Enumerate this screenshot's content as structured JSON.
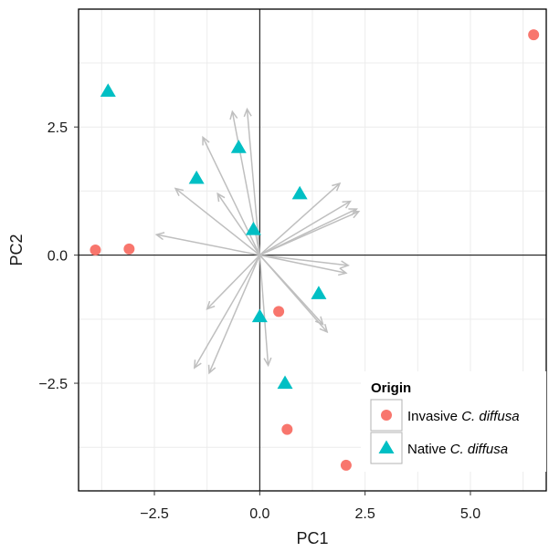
{
  "chart_data": {
    "type": "scatter",
    "xlabel": "PC1",
    "ylabel": "PC2",
    "xlim": [
      -4.3,
      6.8
    ],
    "ylim": [
      -4.6,
      4.8
    ],
    "x_ticks": [
      -2.5,
      0.0,
      2.5,
      5.0
    ],
    "x_tick_labels": [
      "−2.5",
      "0.0",
      "2.5",
      "5.0"
    ],
    "y_ticks": [
      -2.5,
      0.0,
      2.5
    ],
    "y_tick_labels": [
      "−2.5",
      "0.0",
      "2.5"
    ],
    "grid": true,
    "reference_lines": {
      "x": 0,
      "y": 0
    },
    "legend": {
      "title": "Origin",
      "placement": "bottom-right"
    },
    "series": [
      {
        "name": "Invasive C. diffusa",
        "name_prefix": "Invasive ",
        "name_italic": "C. diffusa",
        "marker": "circle",
        "color": "#F8766D",
        "points": [
          {
            "x": 6.5,
            "y": 4.3
          },
          {
            "x": -3.9,
            "y": 0.1
          },
          {
            "x": -3.1,
            "y": 0.12
          },
          {
            "x": 0.45,
            "y": -1.1
          },
          {
            "x": 0.65,
            "y": -3.4
          },
          {
            "x": 2.05,
            "y": -4.1
          }
        ]
      },
      {
        "name": "Native C. diffusa",
        "name_prefix": "Native ",
        "name_italic": "C. diffusa",
        "marker": "triangle",
        "color": "#00BFC4",
        "points": [
          {
            "x": -3.6,
            "y": 3.2
          },
          {
            "x": -0.5,
            "y": 2.1
          },
          {
            "x": -1.5,
            "y": 1.5
          },
          {
            "x": 0.95,
            "y": 1.2
          },
          {
            "x": -0.15,
            "y": 0.5
          },
          {
            "x": 1.4,
            "y": -0.75
          },
          {
            "x": 0.0,
            "y": -1.2
          },
          {
            "x": 0.6,
            "y": -2.5
          }
        ]
      }
    ],
    "loading_vectors": {
      "color": "#bfbfbf",
      "tips": [
        {
          "x": -0.65,
          "y": 2.8
        },
        {
          "x": -0.3,
          "y": 2.85
        },
        {
          "x": -1.35,
          "y": 2.3
        },
        {
          "x": -2.0,
          "y": 1.3
        },
        {
          "x": -1.0,
          "y": 1.2
        },
        {
          "x": -2.45,
          "y": 0.4
        },
        {
          "x": 1.9,
          "y": 1.4
        },
        {
          "x": 2.15,
          "y": 1.05
        },
        {
          "x": 2.3,
          "y": 0.9
        },
        {
          "x": 2.35,
          "y": 0.85
        },
        {
          "x": 2.1,
          "y": -0.2
        },
        {
          "x": 2.05,
          "y": -0.35
        },
        {
          "x": 1.6,
          "y": -1.5
        },
        {
          "x": 1.5,
          "y": -1.35
        },
        {
          "x": -1.25,
          "y": -1.05
        },
        {
          "x": -1.55,
          "y": -2.2
        },
        {
          "x": -1.2,
          "y": -2.3
        },
        {
          "x": 0.2,
          "y": -2.15
        }
      ]
    }
  }
}
